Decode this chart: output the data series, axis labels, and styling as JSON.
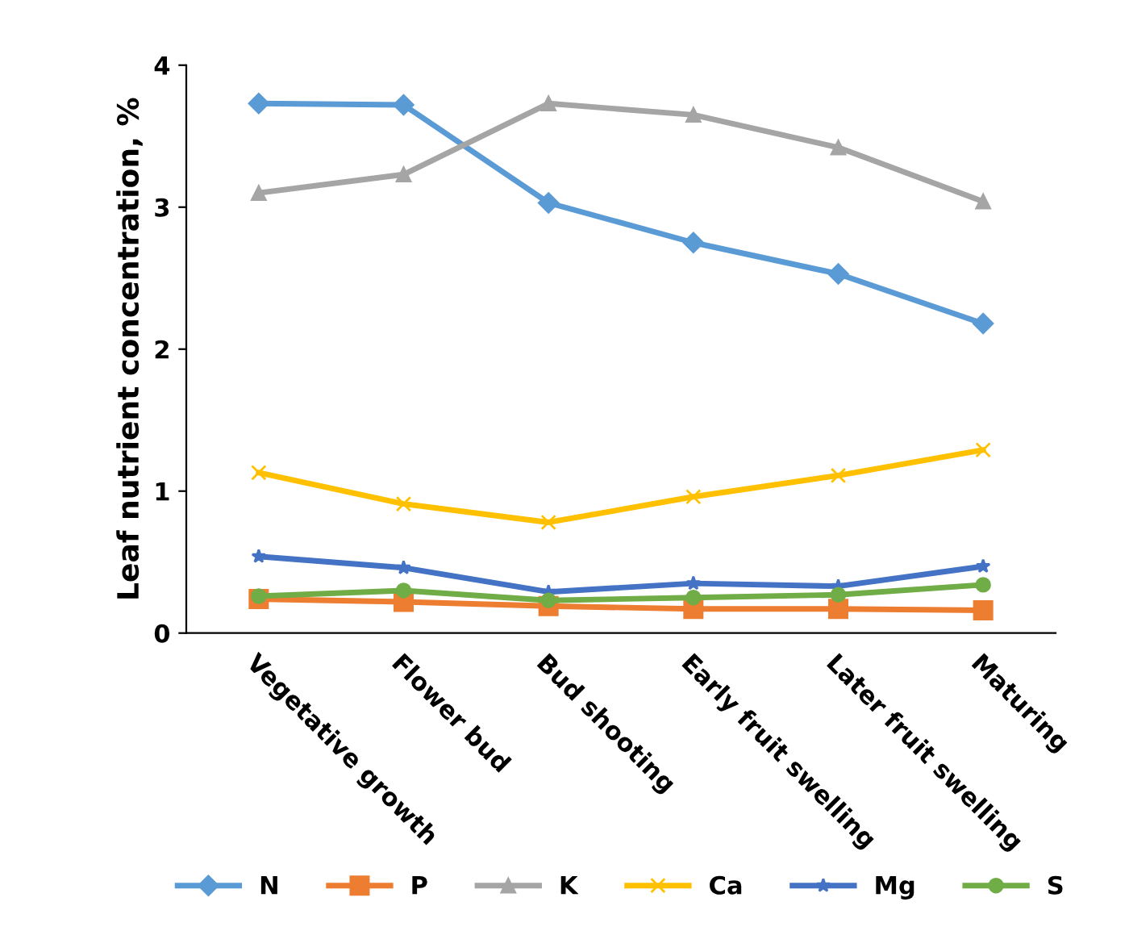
{
  "chart_data": {
    "type": "line",
    "ylabel": "Leaf nutrient concentration, %",
    "categories": [
      "Vegetative growth",
      "Flower bud",
      "Bud shooting",
      "Early fruit swelling",
      "Later fruit swelling",
      "Maturing"
    ],
    "series": [
      {
        "name": "N",
        "color": "#5b9bd5",
        "marker": "diamond",
        "values": [
          3.73,
          3.72,
          3.03,
          2.75,
          2.53,
          2.18
        ]
      },
      {
        "name": "P",
        "color": "#ed7d31",
        "marker": "square",
        "values": [
          0.24,
          0.22,
          0.19,
          0.17,
          0.17,
          0.16
        ]
      },
      {
        "name": "K",
        "color": "#a5a5a5",
        "marker": "triangle",
        "values": [
          3.1,
          3.23,
          3.73,
          3.65,
          3.42,
          3.04
        ]
      },
      {
        "name": "Ca",
        "color": "#ffc000",
        "marker": "cross",
        "values": [
          1.13,
          0.91,
          0.78,
          0.96,
          1.11,
          1.29
        ]
      },
      {
        "name": "Mg",
        "color": "#4472c4",
        "marker": "star",
        "values": [
          0.54,
          0.46,
          0.29,
          0.35,
          0.33,
          0.47
        ]
      },
      {
        "name": "S",
        "color": "#70ad47",
        "marker": "circle",
        "values": [
          0.26,
          0.3,
          0.23,
          0.25,
          0.27,
          0.34
        ]
      }
    ],
    "ylim": [
      0,
      4
    ],
    "yticks": [
      0,
      1,
      2,
      3,
      4
    ],
    "grid": false,
    "legend": "bottom",
    "line_style": "solid"
  }
}
